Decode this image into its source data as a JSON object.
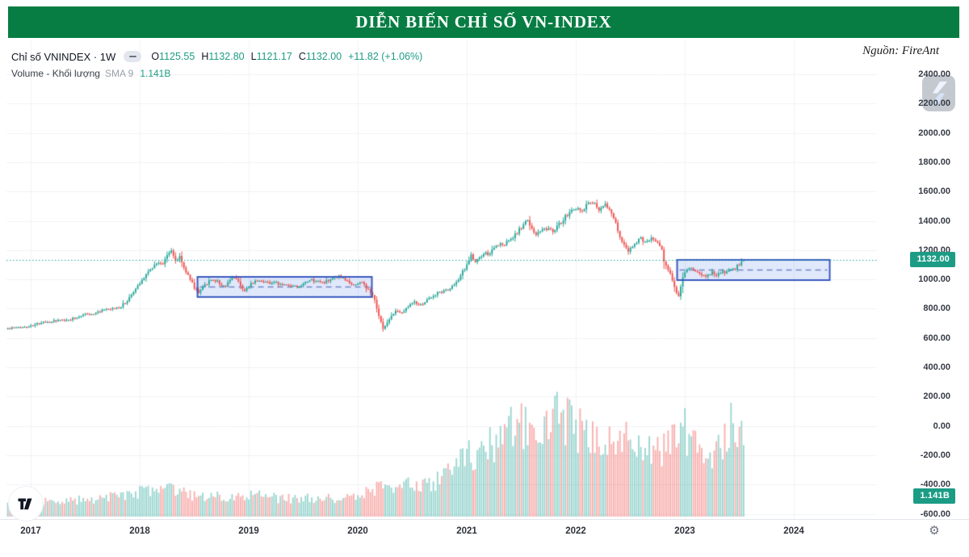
{
  "banner": {
    "title": "DIỄN BIẾN CHỈ SỐ VN-INDEX"
  },
  "source": {
    "label": "Nguồn: FireAnt"
  },
  "legend": {
    "symbol": "Chỉ số VNINDEX · 1W",
    "ohlc": {
      "o_label": "O",
      "o": "1125.55",
      "h_label": "H",
      "h": "1132.80",
      "l_label": "L",
      "l": "1121.17",
      "c_label": "C",
      "c": "1132.00",
      "change": "+11.82 (+1.06%)"
    },
    "volume_label": "Volume - Khối lượng",
    "sma_label": "SMA 9",
    "volume_value": "1.141B"
  },
  "price_axis": {
    "labels": [
      "2400.00",
      "2200.00",
      "2000.00",
      "1800.00",
      "1600.00",
      "1400.00",
      "1200.00",
      "1000.00",
      "800.00",
      "600.00",
      "400.00",
      "200.00",
      "0.00",
      "-200.00",
      "-400.00",
      "-600.00"
    ],
    "last_price_badge": "1132.00",
    "volume_badge": "1.141B"
  },
  "time_axis": {
    "labels": [
      "2017",
      "2018",
      "2019",
      "2020",
      "2021",
      "2022",
      "2023",
      "2024"
    ]
  },
  "icons": {
    "gear": "⚙",
    "hide_indicator": "–"
  },
  "colors": {
    "banner_bg": "#077d43",
    "banner_text": "#ffffff",
    "up": "#26a69a",
    "down": "#ef5350",
    "vol_up": "rgba(38,166,154,0.45)",
    "vol_down": "rgba(239,83,80,0.45)",
    "value_green": "#1f9c84",
    "badge_bg": "#1c9c85",
    "box_fill": "rgba(47,102,228,0.15)",
    "box_border": "#3a59c0",
    "box_dash": "#7286c5",
    "grid": "#f1f2f6",
    "axis_text": "#363a45",
    "last_price_line": "#26a69a"
  },
  "chart_data": {
    "type": "candlestick",
    "symbol": "VNINDEX",
    "timeframe": "1W",
    "title": "DIỄN BIẾN CHỈ SỐ VN-INDEX",
    "x_range": [
      2016.79,
      2024.75
    ],
    "y_range": [
      -600,
      2400
    ],
    "grid": true,
    "last": {
      "open": 1125.55,
      "high": 1132.8,
      "low": 1121.17,
      "close": 1132.0,
      "change_abs": 11.82,
      "change_pct": 1.06
    },
    "last_volume_b": 1.141,
    "close_anchors": [
      [
        2016.79,
        665
      ],
      [
        2016.9,
        672
      ],
      [
        2017.0,
        682
      ],
      [
        2017.08,
        700
      ],
      [
        2017.17,
        710
      ],
      [
        2017.25,
        718
      ],
      [
        2017.33,
        722
      ],
      [
        2017.42,
        740
      ],
      [
        2017.5,
        768
      ],
      [
        2017.56,
        760
      ],
      [
        2017.65,
        786
      ],
      [
        2017.73,
        795
      ],
      [
        2017.81,
        808
      ],
      [
        2017.88,
        848
      ],
      [
        2017.96,
        932
      ],
      [
        2018.04,
        1018
      ],
      [
        2018.12,
        1088
      ],
      [
        2018.17,
        1122
      ],
      [
        2018.21,
        1098
      ],
      [
        2018.26,
        1178
      ],
      [
        2018.29,
        1200
      ],
      [
        2018.33,
        1122
      ],
      [
        2018.37,
        1160
      ],
      [
        2018.42,
        1048
      ],
      [
        2018.46,
        1012
      ],
      [
        2018.5,
        942
      ],
      [
        2018.54,
        915
      ],
      [
        2018.58,
        952
      ],
      [
        2018.63,
        982
      ],
      [
        2018.67,
        1000
      ],
      [
        2018.71,
        988
      ],
      [
        2018.75,
        962
      ],
      [
        2018.79,
        945
      ],
      [
        2018.83,
        1002
      ],
      [
        2018.88,
        1018
      ],
      [
        2018.92,
        968
      ],
      [
        2018.96,
        920
      ],
      [
        2019.0,
        950
      ],
      [
        2019.04,
        982
      ],
      [
        2019.08,
        1000
      ],
      [
        2019.13,
        992
      ],
      [
        2019.17,
        980
      ],
      [
        2019.25,
        975
      ],
      [
        2019.33,
        962
      ],
      [
        2019.42,
        950
      ],
      [
        2019.46,
        940
      ],
      [
        2019.5,
        965
      ],
      [
        2019.54,
        982
      ],
      [
        2019.58,
        995
      ],
      [
        2019.63,
        985
      ],
      [
        2019.67,
        978
      ],
      [
        2019.71,
        985
      ],
      [
        2019.75,
        995
      ],
      [
        2019.79,
        1008
      ],
      [
        2019.83,
        1018
      ],
      [
        2019.88,
        1000
      ],
      [
        2019.92,
        975
      ],
      [
        2019.96,
        962
      ],
      [
        2020.0,
        968
      ],
      [
        2020.04,
        985
      ],
      [
        2020.08,
        940
      ],
      [
        2020.12,
        905
      ],
      [
        2020.15,
        885
      ],
      [
        2020.18,
        782
      ],
      [
        2020.21,
        712
      ],
      [
        2020.23,
        662
      ],
      [
        2020.27,
        700
      ],
      [
        2020.31,
        755
      ],
      [
        2020.35,
        790
      ],
      [
        2020.4,
        772
      ],
      [
        2020.44,
        800
      ],
      [
        2020.48,
        830
      ],
      [
        2020.52,
        858
      ],
      [
        2020.56,
        820
      ],
      [
        2020.6,
        838
      ],
      [
        2020.65,
        868
      ],
      [
        2020.71,
        898
      ],
      [
        2020.77,
        915
      ],
      [
        2020.83,
        932
      ],
      [
        2020.88,
        962
      ],
      [
        2020.92,
        990
      ],
      [
        2020.96,
        1048
      ],
      [
        2021.0,
        1100
      ],
      [
        2021.04,
        1165
      ],
      [
        2021.08,
        1112
      ],
      [
        2021.12,
        1155
      ],
      [
        2021.17,
        1175
      ],
      [
        2021.21,
        1168
      ],
      [
        2021.25,
        1218
      ],
      [
        2021.29,
        1240
      ],
      [
        2021.33,
        1228
      ],
      [
        2021.37,
        1255
      ],
      [
        2021.42,
        1280
      ],
      [
        2021.46,
        1318
      ],
      [
        2021.5,
        1358
      ],
      [
        2021.54,
        1388
      ],
      [
        2021.56,
        1400
      ],
      [
        2021.6,
        1345
      ],
      [
        2021.63,
        1300
      ],
      [
        2021.67,
        1330
      ],
      [
        2021.71,
        1350
      ],
      [
        2021.75,
        1340
      ],
      [
        2021.79,
        1330
      ],
      [
        2021.83,
        1362
      ],
      [
        2021.87,
        1392
      ],
      [
        2021.9,
        1422
      ],
      [
        2021.94,
        1450
      ],
      [
        2021.98,
        1478
      ],
      [
        2022.02,
        1494
      ],
      [
        2022.06,
        1470
      ],
      [
        2022.1,
        1505
      ],
      [
        2022.13,
        1528
      ],
      [
        2022.17,
        1510
      ],
      [
        2022.21,
        1480
      ],
      [
        2022.25,
        1514
      ],
      [
        2022.29,
        1494
      ],
      [
        2022.33,
        1448
      ],
      [
        2022.37,
        1368
      ],
      [
        2022.4,
        1298
      ],
      [
        2022.44,
        1244
      ],
      [
        2022.48,
        1194
      ],
      [
        2022.52,
        1228
      ],
      [
        2022.56,
        1258
      ],
      [
        2022.6,
        1284
      ],
      [
        2022.63,
        1254
      ],
      [
        2022.67,
        1270
      ],
      [
        2022.71,
        1284
      ],
      [
        2022.75,
        1244
      ],
      [
        2022.79,
        1194
      ],
      [
        2022.81,
        1120
      ],
      [
        2022.85,
        1058
      ],
      [
        2022.88,
        1018
      ],
      [
        2022.9,
        962
      ],
      [
        2022.92,
        908
      ],
      [
        2022.94,
        880
      ],
      [
        2022.96,
        948
      ],
      [
        2022.98,
        1018
      ],
      [
        2023.0,
        1048
      ],
      [
        2023.04,
        1088
      ],
      [
        2023.08,
        1074
      ],
      [
        2023.1,
        1055
      ],
      [
        2023.13,
        1044
      ],
      [
        2023.17,
        1030
      ],
      [
        2023.21,
        1022
      ],
      [
        2023.25,
        1046
      ],
      [
        2023.29,
        1034
      ],
      [
        2023.33,
        1052
      ],
      [
        2023.37,
        1042
      ],
      [
        2023.4,
        1060
      ],
      [
        2023.44,
        1074
      ],
      [
        2023.46,
        1068
      ],
      [
        2023.48,
        1088
      ],
      [
        2023.5,
        1104
      ],
      [
        2023.52,
        1118
      ],
      [
        2023.54,
        1132
      ]
    ],
    "volume_anchors": [
      [
        2016.79,
        0.18
      ],
      [
        2017.3,
        0.22
      ],
      [
        2017.7,
        0.26
      ],
      [
        2018.0,
        0.36
      ],
      [
        2018.25,
        0.4
      ],
      [
        2018.5,
        0.3
      ],
      [
        2018.75,
        0.28
      ],
      [
        2019.0,
        0.32
      ],
      [
        2019.3,
        0.25
      ],
      [
        2019.6,
        0.27
      ],
      [
        2019.9,
        0.26
      ],
      [
        2020.1,
        0.36
      ],
      [
        2020.25,
        0.42
      ],
      [
        2020.45,
        0.44
      ],
      [
        2020.6,
        0.42
      ],
      [
        2020.75,
        0.52
      ],
      [
        2020.9,
        0.68
      ],
      [
        2021.0,
        0.85
      ],
      [
        2021.15,
        0.95
      ],
      [
        2021.3,
        1.05
      ],
      [
        2021.45,
        1.35
      ],
      [
        2021.55,
        1.2
      ],
      [
        2021.65,
        1.3
      ],
      [
        2021.78,
        1.58
      ],
      [
        2021.88,
        1.35
      ],
      [
        2022.0,
        1.25
      ],
      [
        2022.15,
        1.1
      ],
      [
        2022.3,
        1.0
      ],
      [
        2022.45,
        1.1
      ],
      [
        2022.6,
        0.95
      ],
      [
        2022.75,
        0.88
      ],
      [
        2022.88,
        1.1
      ],
      [
        2022.95,
        1.42
      ],
      [
        2023.05,
        1.0
      ],
      [
        2023.2,
        0.88
      ],
      [
        2023.35,
        0.98
      ],
      [
        2023.45,
        1.38
      ],
      [
        2023.54,
        1.14
      ]
    ],
    "consolidation_ranges": [
      {
        "from": 2018.53,
        "to": 2020.13,
        "low": 880,
        "high": 1017
      },
      {
        "from": 2022.93,
        "to": 2024.33,
        "low": 995,
        "high": 1133
      }
    ],
    "last_price_line": 1132.0
  }
}
